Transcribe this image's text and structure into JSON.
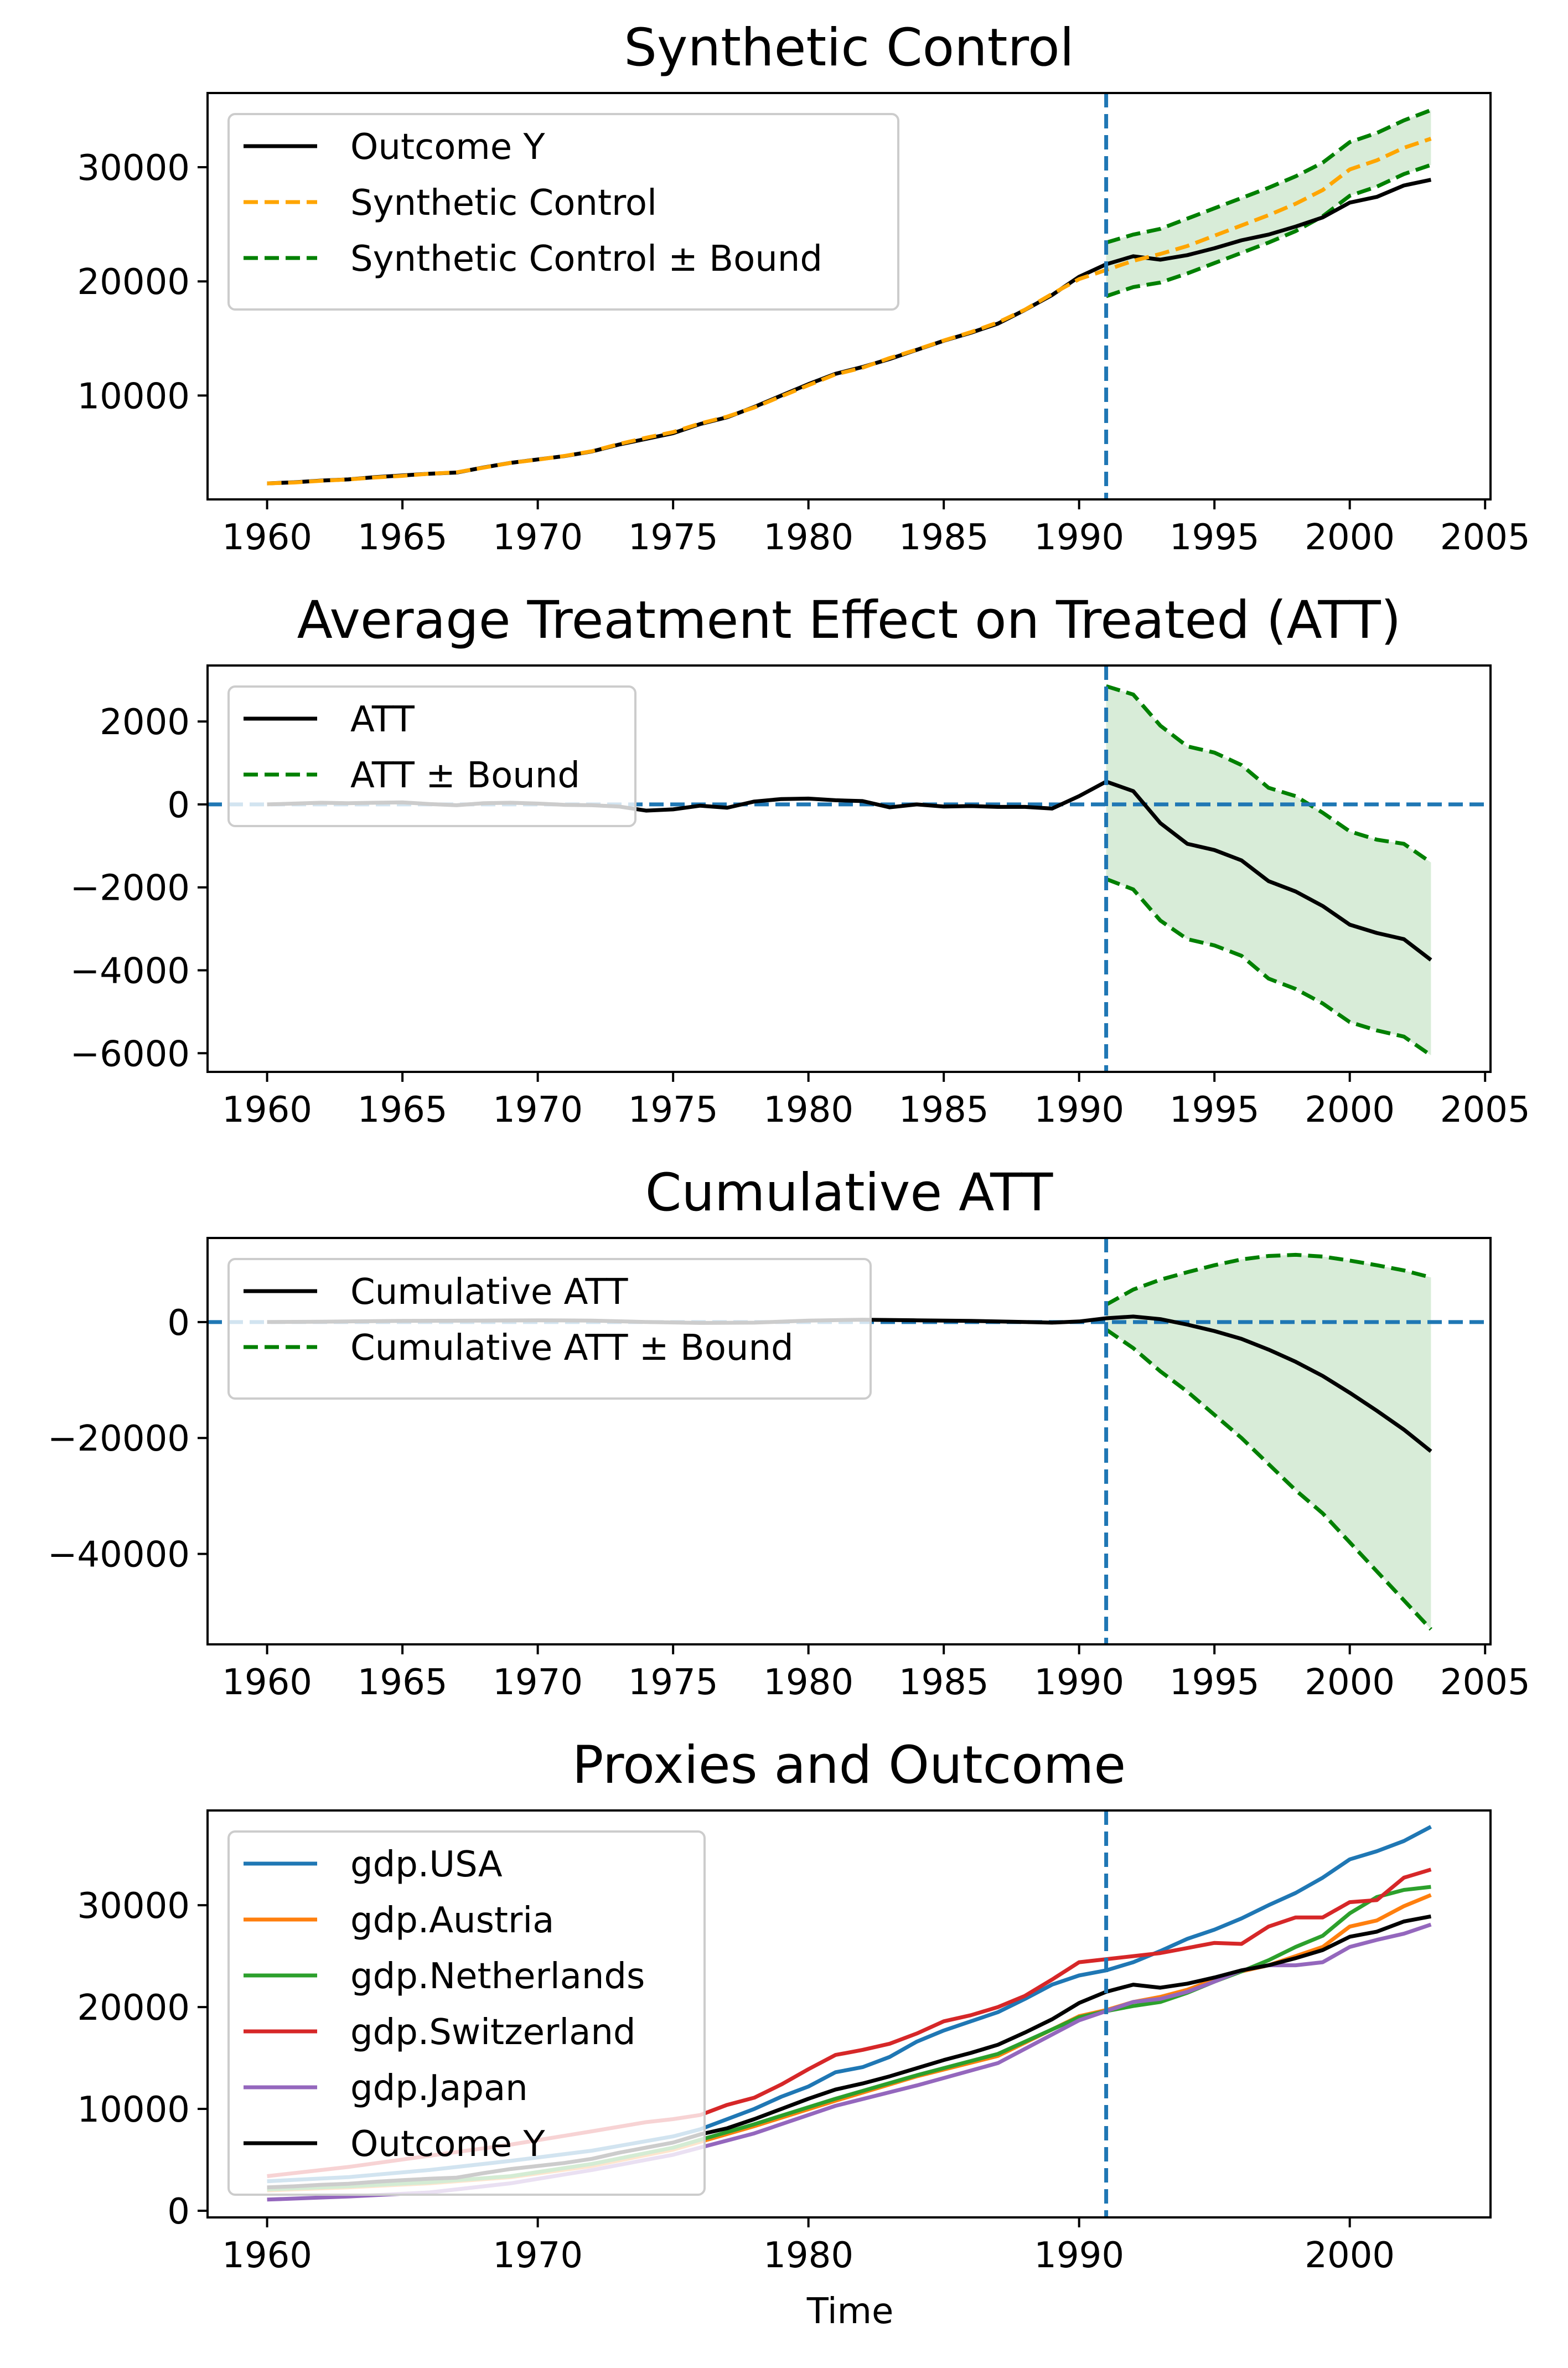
{
  "figure": {
    "xlabel": "Time"
  },
  "colors": {
    "black": "#000000",
    "orange_dashed": "#ffa500",
    "bound_green": "#008000",
    "band_fill": "#d8ecd8",
    "vline": "#1f77b4",
    "usa": "#1f77b4",
    "austria": "#ff7f0e",
    "netherlands": "#2ca02c",
    "switzerland": "#d62728",
    "japan": "#9467bd"
  },
  "chart_data": [
    {
      "type": "line",
      "title": "Synthetic Control",
      "xlabel": "",
      "ylabel": "",
      "xlim": [
        1957.8,
        2005.2
      ],
      "ylim": [
        900,
        36500
      ],
      "xticks": [
        1960,
        1965,
        1970,
        1975,
        1980,
        1985,
        1990,
        1995,
        2000,
        2005
      ],
      "yticks": [
        10000,
        20000,
        30000
      ],
      "vline": 1991,
      "legend_position": "upper-left",
      "band": {
        "x": [
          1991,
          1992,
          1993,
          1994,
          1995,
          1996,
          1997,
          1998,
          1999,
          2000,
          2001,
          2002,
          2003
        ],
        "lower": [
          18700,
          19500,
          19900,
          20700,
          21600,
          22500,
          23400,
          24400,
          25700,
          27500,
          28300,
          29400,
          30200
        ],
        "upper": [
          23400,
          24100,
          24600,
          25500,
          26400,
          27300,
          28200,
          29200,
          30400,
          32200,
          33000,
          34100,
          35000
        ]
      },
      "series": [
        {
          "name": "Outcome Y",
          "style": "solid",
          "color": "#000000",
          "x": [
            1960,
            1961,
            1962,
            1963,
            1964,
            1965,
            1966,
            1967,
            1968,
            1969,
            1970,
            1971,
            1972,
            1973,
            1974,
            1975,
            1976,
            1977,
            1978,
            1979,
            1980,
            1981,
            1982,
            1983,
            1984,
            1985,
            1986,
            1987,
            1988,
            1989,
            1990,
            1991,
            1992,
            1993,
            1994,
            1995,
            1996,
            1997,
            1998,
            1999,
            2000,
            2001,
            2002,
            2003
          ],
          "y": [
            2300,
            2400,
            2550,
            2650,
            2850,
            3000,
            3150,
            3250,
            3700,
            4100,
            4400,
            4700,
            5100,
            5700,
            6200,
            6700,
            7500,
            8100,
            9000,
            10000,
            11000,
            11900,
            12500,
            13200,
            14000,
            14800,
            15500,
            16300,
            17500,
            18800,
            20400,
            21500,
            22200,
            21900,
            22300,
            22900,
            23600,
            24100,
            24800,
            25600,
            26900,
            27400,
            28400,
            28900
          ]
        },
        {
          "name": "Synthetic Control",
          "style": "dashed",
          "color": "#ffa500",
          "x": [
            1960,
            1961,
            1962,
            1963,
            1964,
            1965,
            1966,
            1967,
            1968,
            1969,
            1970,
            1971,
            1972,
            1973,
            1974,
            1975,
            1976,
            1977,
            1978,
            1979,
            1980,
            1981,
            1982,
            1983,
            1984,
            1985,
            1986,
            1987,
            1988,
            1989,
            1990,
            1991,
            1992,
            1993,
            1994,
            1995,
            1996,
            1997,
            1998,
            1999,
            2000,
            2001,
            2002,
            2003
          ],
          "y": [
            2300,
            2380,
            2530,
            2650,
            2820,
            2960,
            3150,
            3270,
            3680,
            4100,
            4380,
            4710,
            5120,
            5750,
            6300,
            6800,
            7550,
            8150,
            8950,
            9930,
            10900,
            11850,
            12440,
            13280,
            14020,
            14820,
            15550,
            16400,
            17520,
            18900,
            20200,
            21000,
            21800,
            22400,
            23100,
            24000,
            24900,
            25800,
            26800,
            28000,
            29800,
            30600,
            31700,
            32500
          ]
        },
        {
          "name": "Synthetic Control ± Bound",
          "style": "dashed",
          "color": "#008000",
          "legend_only": true
        }
      ]
    },
    {
      "type": "line",
      "title": "Average Treatment Effect on Treated (ATT)",
      "xlabel": "",
      "ylabel": "",
      "xlim": [
        1957.8,
        2005.2
      ],
      "ylim": [
        -6450,
        3350
      ],
      "xticks": [
        1960,
        1965,
        1970,
        1975,
        1980,
        1985,
        1990,
        1995,
        2000,
        2005
      ],
      "yticks": [
        2000,
        0,
        -2000,
        -4000,
        -6000
      ],
      "vline": 1991,
      "hline": 0,
      "legend_position": "upper-left",
      "band": {
        "x": [
          1991,
          1992,
          1993,
          1994,
          1995,
          1996,
          1997,
          1998,
          1999,
          2000,
          2001,
          2002,
          2003
        ],
        "lower": [
          -1800,
          -2050,
          -2800,
          -3250,
          -3400,
          -3650,
          -4200,
          -4450,
          -4800,
          -5250,
          -5450,
          -5600,
          -6050
        ],
        "upper": [
          2850,
          2650,
          1900,
          1400,
          1250,
          950,
          400,
          200,
          -200,
          -650,
          -850,
          -950,
          -1400
        ]
      },
      "series": [
        {
          "name": "ATT",
          "style": "solid",
          "color": "#000000",
          "x": [
            1960,
            1961,
            1962,
            1963,
            1964,
            1965,
            1966,
            1967,
            1968,
            1969,
            1970,
            1971,
            1972,
            1973,
            1974,
            1975,
            1976,
            1977,
            1978,
            1979,
            1980,
            1981,
            1982,
            1983,
            1984,
            1985,
            1986,
            1987,
            1988,
            1989,
            1990,
            1991,
            1992,
            1993,
            1994,
            1995,
            1996,
            1997,
            1998,
            1999,
            2000,
            2001,
            2002,
            2003
          ],
          "y": [
            0,
            20,
            40,
            30,
            40,
            50,
            10,
            -20,
            30,
            40,
            20,
            -10,
            -20,
            -50,
            -150,
            -120,
            -30,
            -80,
            70,
            130,
            140,
            100,
            80,
            -70,
            0,
            -50,
            -40,
            -60,
            -60,
            -100,
            200,
            550,
            320,
            -450,
            -950,
            -1100,
            -1350,
            -1850,
            -2100,
            -2450,
            -2900,
            -3100,
            -3250,
            -3750
          ]
        },
        {
          "name": "ATT ± Bound",
          "style": "dashed",
          "color": "#008000",
          "legend_only": true
        }
      ]
    },
    {
      "type": "line",
      "title": "Cumulative ATT",
      "xlabel": "",
      "ylabel": "",
      "xlim": [
        1957.8,
        2005.2
      ],
      "ylim": [
        -55600,
        14500
      ],
      "xticks": [
        1960,
        1965,
        1970,
        1975,
        1980,
        1985,
        1990,
        1995,
        2000,
        2005
      ],
      "yticks": [
        0,
        -20000,
        -40000
      ],
      "vline": 1991,
      "hline": 0,
      "legend_position": "upper-left",
      "band": {
        "x": [
          1991,
          1992,
          1993,
          1994,
          1995,
          1996,
          1997,
          1998,
          1999,
          2000,
          2001,
          2002,
          2003
        ],
        "lower": [
          -1300,
          -4500,
          -8500,
          -12000,
          -16000,
          -20000,
          -24500,
          -29000,
          -33000,
          -38000,
          -43000,
          -48000,
          -53000
        ],
        "upper": [
          3000,
          5600,
          7300,
          8600,
          9800,
          10800,
          11400,
          11600,
          11300,
          10600,
          9800,
          8900,
          7700
        ]
      },
      "series": [
        {
          "name": "Cumulative ATT",
          "style": "solid",
          "color": "#000000",
          "x": [
            1960,
            1962,
            1965,
            1968,
            1970,
            1972,
            1974,
            1976,
            1978,
            1980,
            1982,
            1984,
            1986,
            1988,
            1989,
            1990,
            1991,
            1992,
            1993,
            1994,
            1995,
            1996,
            1997,
            1998,
            1999,
            2000,
            2001,
            2002,
            2003
          ],
          "y": [
            0,
            60,
            200,
            250,
            300,
            250,
            0,
            -150,
            -100,
            250,
            400,
            300,
            200,
            0,
            -100,
            100,
            650,
            950,
            500,
            -450,
            -1550,
            -2900,
            -4750,
            -6850,
            -9300,
            -12200,
            -15300,
            -18550,
            -22300
          ]
        },
        {
          "name": "Cumulative ATT ± Bound",
          "style": "dashed",
          "color": "#008000",
          "legend_only": true
        }
      ]
    },
    {
      "type": "line",
      "title": "Proxies and Outcome",
      "xlabel": "Time",
      "ylabel": "",
      "xlim": [
        1957.8,
        2005.2
      ],
      "ylim": [
        -650,
        39300
      ],
      "xticks": [
        1960,
        1970,
        1980,
        1990,
        2000
      ],
      "yticks": [
        0,
        10000,
        20000,
        30000
      ],
      "vline": 1991,
      "legend_position": "upper-left",
      "series": [
        {
          "name": "gdp.USA",
          "style": "solid",
          "color": "#1f77b4",
          "x": [
            1960,
            1963,
            1966,
            1969,
            1972,
            1975,
            1976,
            1977,
            1978,
            1979,
            1980,
            1981,
            1982,
            1983,
            1984,
            1985,
            1986,
            1987,
            1988,
            1989,
            1990,
            1991,
            1992,
            1993,
            1994,
            1995,
            1996,
            1997,
            1998,
            1999,
            2000,
            2001,
            2002,
            2003
          ],
          "y": [
            2900,
            3300,
            4000,
            4900,
            5900,
            7300,
            8000,
            9000,
            10000,
            11200,
            12200,
            13600,
            14100,
            15100,
            16600,
            17700,
            18600,
            19500,
            20800,
            22200,
            23100,
            23600,
            24400,
            25500,
            26700,
            27600,
            28700,
            30000,
            31200,
            32700,
            34500,
            35300,
            36300,
            37700
          ]
        },
        {
          "name": "gdp.Austria",
          "style": "solid",
          "color": "#ff7f0e",
          "x": [
            1960,
            1963,
            1966,
            1969,
            1972,
            1975,
            1978,
            1981,
            1984,
            1987,
            1990,
            1991,
            1992,
            1993,
            1994,
            1995,
            1996,
            1997,
            1998,
            1999,
            2000,
            2001,
            2002,
            2003
          ],
          "y": [
            2000,
            2300,
            2700,
            3300,
            4400,
            6000,
            8300,
            10800,
            13200,
            15200,
            19100,
            19700,
            20500,
            21000,
            21700,
            22700,
            23500,
            24100,
            25000,
            25900,
            27900,
            28500,
            29900,
            31000
          ]
        },
        {
          "name": "gdp.Netherlands",
          "style": "solid",
          "color": "#2ca02c",
          "x": [
            1960,
            1963,
            1966,
            1969,
            1972,
            1975,
            1978,
            1981,
            1984,
            1987,
            1990,
            1991,
            1992,
            1993,
            1994,
            1995,
            1996,
            1997,
            1998,
            1999,
            2000,
            2001,
            2002,
            2003
          ],
          "y": [
            2100,
            2400,
            2800,
            3400,
            4600,
            6200,
            8500,
            11000,
            13300,
            15400,
            19000,
            19600,
            20100,
            20500,
            21400,
            22500,
            23500,
            24600,
            25900,
            27000,
            29200,
            30800,
            31500,
            31800
          ]
        },
        {
          "name": "gdp.Switzerland",
          "style": "solid",
          "color": "#d62728",
          "x": [
            1960,
            1963,
            1966,
            1969,
            1972,
            1974,
            1975,
            1976,
            1977,
            1978,
            1979,
            1980,
            1981,
            1982,
            1983,
            1984,
            1985,
            1986,
            1987,
            1988,
            1989,
            1990,
            1991,
            1992,
            1993,
            1994,
            1995,
            1996,
            1997,
            1998,
            1999,
            2000,
            2001,
            2002,
            2003
          ],
          "y": [
            3400,
            4300,
            5400,
            6500,
            7800,
            8700,
            9000,
            9400,
            10400,
            11100,
            12400,
            13900,
            15300,
            15800,
            16400,
            17400,
            18600,
            19200,
            20000,
            21100,
            22700,
            24400,
            24700,
            25000,
            25300,
            25800,
            26300,
            26200,
            27900,
            28800,
            28800,
            30300,
            30500,
            32700,
            33500
          ]
        },
        {
          "name": "gdp.Japan",
          "style": "solid",
          "color": "#9467bd",
          "x": [
            1960,
            1963,
            1966,
            1969,
            1972,
            1975,
            1978,
            1981,
            1984,
            1987,
            1990,
            1991,
            1992,
            1993,
            1994,
            1995,
            1996,
            1997,
            1998,
            1999,
            2000,
            2001,
            2002,
            2003
          ],
          "y": [
            1100,
            1400,
            1800,
            2700,
            4000,
            5500,
            7600,
            10300,
            12300,
            14500,
            18700,
            19600,
            20500,
            20800,
            21500,
            22500,
            23600,
            24100,
            24100,
            24400,
            25900,
            26600,
            27200,
            28100
          ]
        },
        {
          "name": "Outcome Y",
          "style": "solid",
          "color": "#000000",
          "x": [
            1960,
            1961,
            1962,
            1963,
            1964,
            1965,
            1966,
            1967,
            1968,
            1969,
            1970,
            1971,
            1972,
            1973,
            1974,
            1975,
            1976,
            1977,
            1978,
            1979,
            1980,
            1981,
            1982,
            1983,
            1984,
            1985,
            1986,
            1987,
            1988,
            1989,
            1990,
            1991,
            1992,
            1993,
            1994,
            1995,
            1996,
            1997,
            1998,
            1999,
            2000,
            2001,
            2002,
            2003
          ],
          "y": [
            2300,
            2400,
            2550,
            2650,
            2850,
            3000,
            3150,
            3250,
            3700,
            4100,
            4400,
            4700,
            5100,
            5700,
            6200,
            6700,
            7500,
            8100,
            9000,
            10000,
            11000,
            11900,
            12500,
            13200,
            14000,
            14800,
            15500,
            16300,
            17500,
            18800,
            20400,
            21500,
            22200,
            21900,
            22300,
            22900,
            23600,
            24100,
            24800,
            25600,
            26900,
            27400,
            28400,
            28900
          ]
        }
      ]
    }
  ]
}
